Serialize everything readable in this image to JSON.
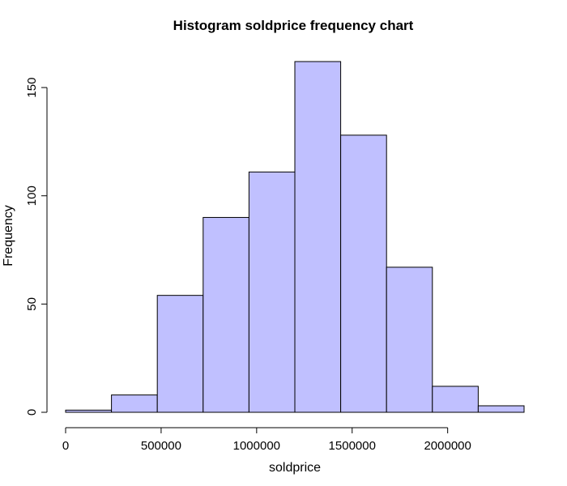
{
  "chart_data": {
    "type": "bar",
    "title": "Histogram soldprice frequency chart",
    "xlabel": "soldprice",
    "ylabel": "Frequency",
    "bin_edges": [
      0,
      240000,
      480000,
      720000,
      960000,
      1200000,
      1440000,
      1680000,
      1920000,
      2160000,
      2400000
    ],
    "values": [
      1,
      8,
      54,
      90,
      111,
      162,
      128,
      67,
      12,
      3
    ],
    "x_ticks": [
      0,
      500000,
      1000000,
      1500000,
      2000000
    ],
    "y_ticks": [
      0,
      50,
      100,
      150
    ],
    "xlim": [
      0,
      2400000
    ],
    "ylim": [
      0,
      162
    ],
    "grid": false,
    "legend": "none",
    "colors": {
      "bar_fill": "#c0c0ff",
      "bar_stroke": "#000000",
      "axis": "#000000",
      "text": "#000000",
      "background": "#ffffff"
    }
  }
}
